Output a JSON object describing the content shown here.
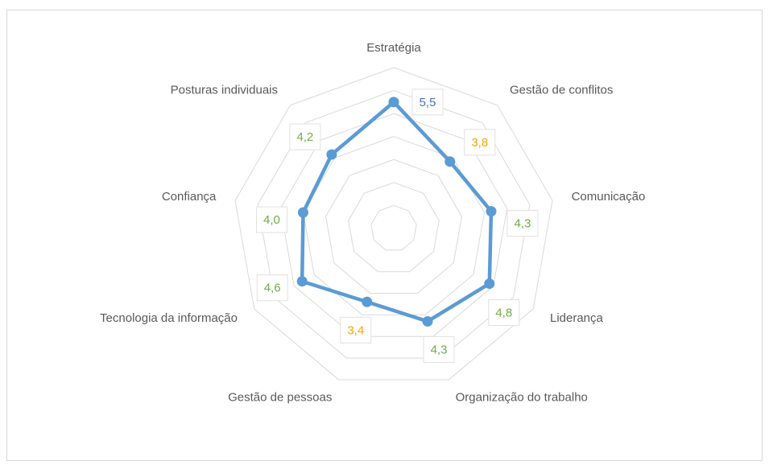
{
  "chart_data": {
    "type": "radar",
    "categories": [
      "Estratégia",
      "Gestão de conflitos",
      "Comunicação",
      "Liderança",
      "Organização do trabalho",
      "Gestão de pessoas",
      "Tecnologia da informação",
      "Confiança",
      "Posturas individuais"
    ],
    "values": [
      5.5,
      3.8,
      4.3,
      4.8,
      4.3,
      3.4,
      4.6,
      4.0,
      4.2
    ],
    "value_labels": [
      "5,5",
      "3,8",
      "4,3",
      "4,8",
      "4,3",
      "3,4",
      "4,6",
      "4,0",
      "4,2"
    ],
    "value_label_colors": [
      "#4472c4",
      "#ffa500",
      "#70ad47",
      "#70ad47",
      "#70ad47",
      "#ffa500",
      "#70ad47",
      "#70ad47",
      "#70ad47"
    ],
    "color": "#5b9bd5",
    "ylim": [
      0,
      7
    ],
    "yticks": [
      0,
      1,
      2,
      3,
      4,
      5,
      6,
      7
    ],
    "grid": true
  }
}
